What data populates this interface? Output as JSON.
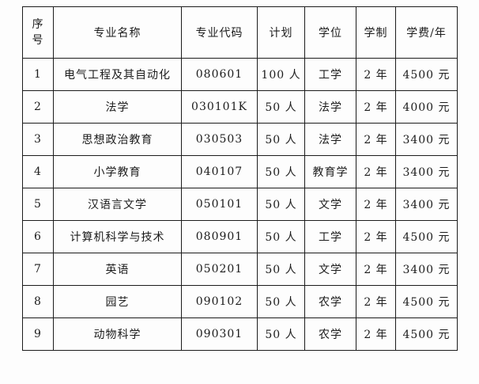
{
  "table": {
    "headers": {
      "no": "序号",
      "name": "专业名称",
      "code": "专业代码",
      "plan": "计划",
      "degree": "学位",
      "duration": "学制",
      "fee": "学费/年"
    },
    "rows": [
      {
        "no": "1",
        "name": "电气工程及其自动化",
        "code": "080601",
        "plan": "100 人",
        "degree": "工学",
        "duration": "2 年",
        "fee": "4500 元"
      },
      {
        "no": "2",
        "name": "法学",
        "code": "030101K",
        "plan": "50 人",
        "degree": "法学",
        "duration": "2 年",
        "fee": "4000 元"
      },
      {
        "no": "3",
        "name": "思想政治教育",
        "code": "030503",
        "plan": "50 人",
        "degree": "法学",
        "duration": "2 年",
        "fee": "3400 元"
      },
      {
        "no": "4",
        "name": "小学教育",
        "code": "040107",
        "plan": "50 人",
        "degree": "教育学",
        "duration": "2 年",
        "fee": "3400 元"
      },
      {
        "no": "5",
        "name": "汉语言文学",
        "code": "050101",
        "plan": "50 人",
        "degree": "文学",
        "duration": "2 年",
        "fee": "3400 元"
      },
      {
        "no": "6",
        "name": "计算机科学与技术",
        "code": "080901",
        "plan": "50 人",
        "degree": "工学",
        "duration": "2 年",
        "fee": "4500 元"
      },
      {
        "no": "7",
        "name": "英语",
        "code": "050201",
        "plan": "50 人",
        "degree": "文学",
        "duration": "2 年",
        "fee": "3400 元"
      },
      {
        "no": "8",
        "name": "园艺",
        "code": "090102",
        "plan": "50 人",
        "degree": "农学",
        "duration": "2 年",
        "fee": "4500 元"
      },
      {
        "no": "9",
        "name": "动物科学",
        "code": "090301",
        "plan": "50 人",
        "degree": "农学",
        "duration": "2 年",
        "fee": "4500 元"
      }
    ],
    "grid_color": "#1c1c1c",
    "background_color": "#fdfdfd"
  }
}
